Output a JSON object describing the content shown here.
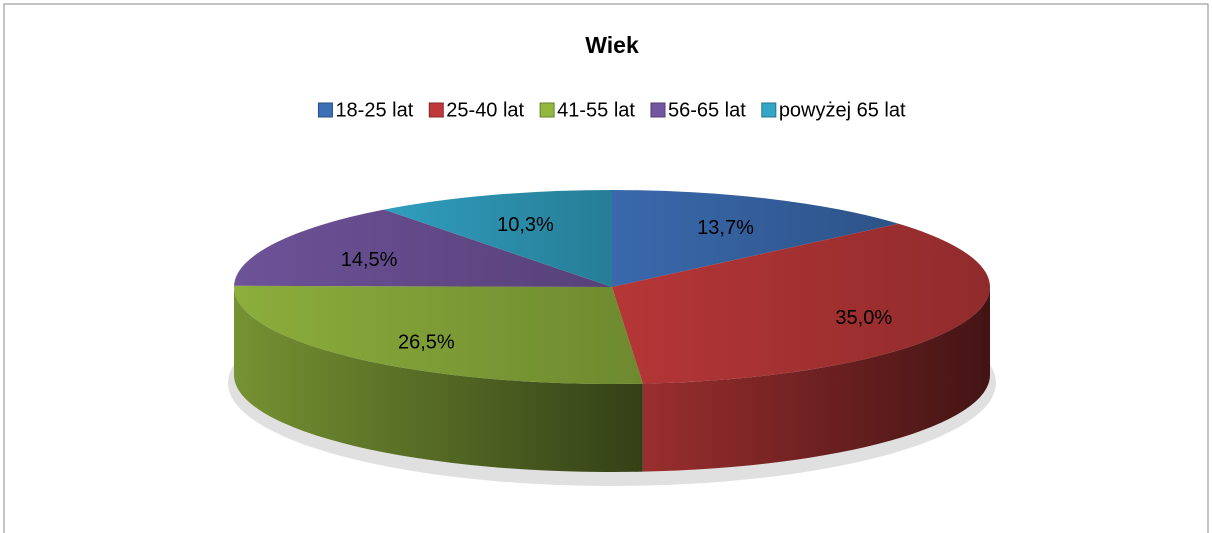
{
  "chart_data": {
    "type": "pie",
    "title": "Wiek",
    "categories": [
      "18-25 lat",
      "25-40 lat",
      "41-55 lat",
      "56-65 lat",
      "powyżej 65 lat"
    ],
    "values": [
      13.7,
      35.0,
      26.5,
      14.5,
      10.3
    ],
    "value_labels": [
      "13,7%",
      "35,0%",
      "26,5%",
      "14,5%",
      "10,3%"
    ],
    "colors": [
      "#3c6fb5",
      "#c0393a",
      "#93b73f",
      "#7356a0",
      "#33a6c8"
    ],
    "legend": "top"
  }
}
